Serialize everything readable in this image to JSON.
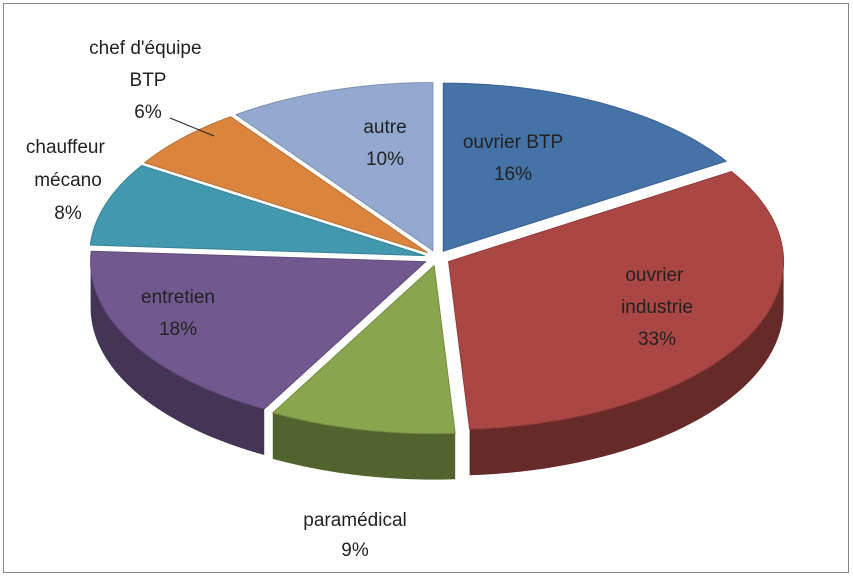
{
  "chart_data": {
    "type": "pie3d",
    "categories": [
      "ouvrier BTP",
      "ouvrier industrie",
      "paramédical",
      "entretien",
      "chauffeur mécano",
      "chef d'équipe BTP",
      "autre"
    ],
    "values": [
      16,
      33,
      9,
      18,
      8,
      6,
      10
    ],
    "value_labels": [
      "16%",
      "33%",
      "9%",
      "18%",
      "8%",
      "6%",
      "10%"
    ],
    "colors": [
      "#4572a7",
      "#aa4643",
      "#89a54e",
      "#71588f",
      "#4198af",
      "#db843d",
      "#93a9cf"
    ]
  }
}
